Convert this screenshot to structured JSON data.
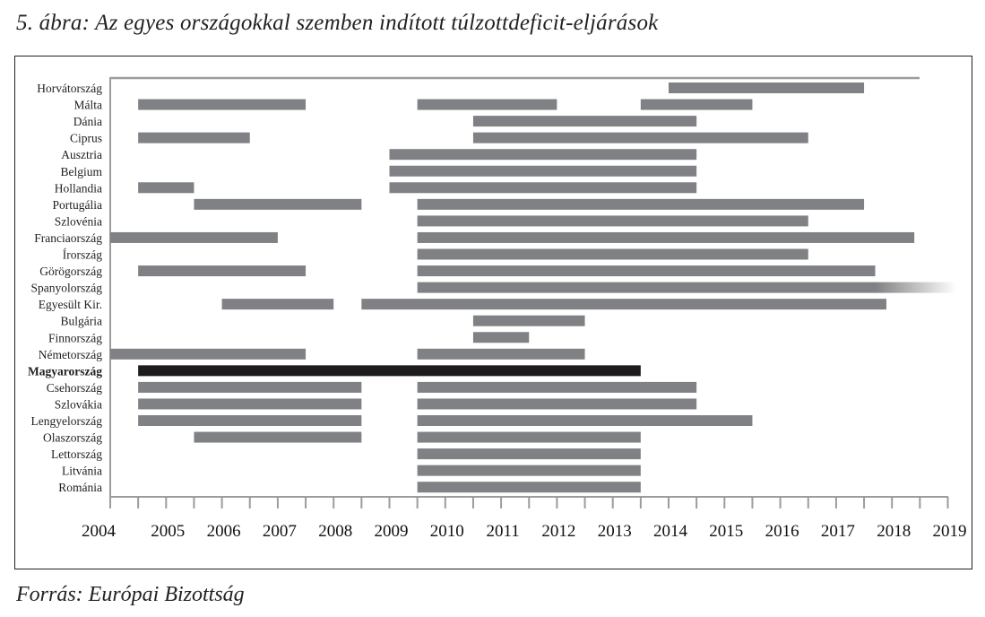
{
  "title": "5. ábra: Az egyes országokkal szemben indított túlzottdeficit-eljárások",
  "source": "Forrás: Európai Bizottság",
  "chart_data": {
    "type": "bar",
    "orientation": "horizontal-range",
    "title": "5. ábra: Az egyes országokkal szemben indított túlzottdeficit-eljárások",
    "xlim": [
      2004,
      2019
    ],
    "x_ticks": [
      2004,
      2005,
      2006,
      2007,
      2008,
      2009,
      2010,
      2011,
      2012,
      2013,
      2014,
      2015,
      2016,
      2017,
      2018,
      2019
    ],
    "grid": false,
    "colors": {
      "default": "#808184",
      "highlight": "#1e1c1d"
    },
    "highlight": "Magyarország",
    "ongoing": [
      "Spanyolország"
    ],
    "categories": [
      "Horvátország",
      "Málta",
      "Dánia",
      "Ciprus",
      "Ausztria",
      "Belgium",
      "Hollandia",
      "Portugália",
      "Szlovénia",
      "Franciaország",
      "Írország",
      "Görögország",
      "Spanyolország",
      "Egyesült Kir.",
      "Bulgária",
      "Finnország",
      "Németország",
      "Magyarország",
      "Csehország",
      "Szlovákia",
      "Lengyelország",
      "Olaszország",
      "Lettország",
      "Litvánia",
      "Románia"
    ],
    "ranges": [
      [
        [
          2014.0,
          2017.5
        ]
      ],
      [
        [
          2004.5,
          2007.5
        ],
        [
          2009.5,
          2012.0
        ],
        [
          2013.5,
          2015.5
        ]
      ],
      [
        [
          2010.5,
          2014.5
        ]
      ],
      [
        [
          2004.5,
          2006.5
        ],
        [
          2010.5,
          2016.5
        ]
      ],
      [
        [
          2009.0,
          2014.5
        ]
      ],
      [
        [
          2009.0,
          2014.5
        ]
      ],
      [
        [
          2004.5,
          2005.5
        ],
        [
          2009.0,
          2014.5
        ]
      ],
      [
        [
          2005.5,
          2008.5
        ],
        [
          2009.5,
          2017.5
        ]
      ],
      [
        [
          2009.5,
          2016.5
        ]
      ],
      [
        [
          2004.0,
          2007.0
        ],
        [
          2009.5,
          2018.4
        ]
      ],
      [
        [
          2009.5,
          2016.5
        ]
      ],
      [
        [
          2004.5,
          2007.5
        ],
        [
          2009.5,
          2017.7
        ]
      ],
      [
        [
          2009.5,
          2018.75
        ]
      ],
      [
        [
          2006.0,
          2008.0
        ],
        [
          2008.5,
          2017.9
        ]
      ],
      [
        [
          2010.5,
          2012.5
        ]
      ],
      [
        [
          2010.5,
          2011.5
        ]
      ],
      [
        [
          2004.0,
          2007.5
        ],
        [
          2009.5,
          2012.5
        ]
      ],
      [
        [
          2004.5,
          2013.5
        ]
      ],
      [
        [
          2004.5,
          2008.5
        ],
        [
          2009.5,
          2014.5
        ]
      ],
      [
        [
          2004.5,
          2008.5
        ],
        [
          2009.5,
          2014.5
        ]
      ],
      [
        [
          2004.5,
          2008.5
        ],
        [
          2009.5,
          2015.5
        ]
      ],
      [
        [
          2005.5,
          2008.5
        ],
        [
          2009.5,
          2013.5
        ]
      ],
      [
        [
          2009.5,
          2013.5
        ]
      ],
      [
        [
          2009.5,
          2013.5
        ]
      ],
      [
        [
          2009.5,
          2013.5
        ]
      ]
    ]
  }
}
